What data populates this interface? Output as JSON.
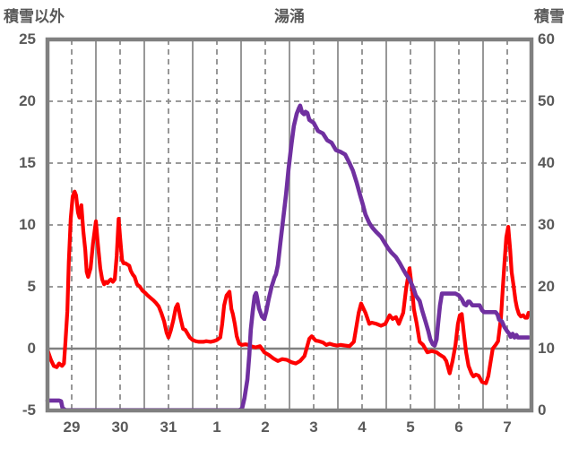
{
  "title": "湯涌",
  "left_axis": {
    "title": "積雪以外",
    "min": -5,
    "max": 25,
    "tick_step": 5,
    "ticks": [
      "25",
      "20",
      "15",
      "10",
      "5",
      "0",
      "-5"
    ]
  },
  "right_axis": {
    "title": "積雪",
    "min": 0,
    "max": 60,
    "tick_step": 10,
    "ticks": [
      "60",
      "50",
      "40",
      "30",
      "20",
      "10",
      "0"
    ]
  },
  "x_axis": {
    "tick_labels": [
      "29",
      "30",
      "31",
      "1",
      "2",
      "3",
      "4",
      "5",
      "6",
      "7"
    ],
    "note": "daily columns Dec 29 - Jan 7; solid gridlines at day boundaries, dashed gridlines at day centers; x unit below = days from left edge (label k centered at k+0.5)"
  },
  "colors": {
    "series_red": "#fe0000",
    "series_purple": "#7030a0",
    "grid": "#8c8c8c",
    "border": "#808080",
    "text": "#595959",
    "background": "#ffffff"
  },
  "chart_data": {
    "type": "line",
    "title": "湯涌",
    "x_domain": [
      0,
      10
    ],
    "left_ylim": [
      -5,
      25
    ],
    "right_ylim": [
      0,
      60
    ],
    "grid": "on",
    "legend": "none",
    "series": [
      {
        "name": "積雪以外",
        "axis": "left",
        "color": "#fe0000",
        "points": [
          [
            0.0,
            -0.1
          ],
          [
            0.07,
            -0.9
          ],
          [
            0.13,
            -1.4
          ],
          [
            0.19,
            -1.5
          ],
          [
            0.24,
            -1.2
          ],
          [
            0.3,
            -1.4
          ],
          [
            0.34,
            -1.2
          ],
          [
            0.37,
            0.5
          ],
          [
            0.41,
            3.0
          ],
          [
            0.44,
            7.0
          ],
          [
            0.48,
            10.5
          ],
          [
            0.52,
            12.3
          ],
          [
            0.56,
            12.7
          ],
          [
            0.59,
            12.4
          ],
          [
            0.63,
            11.0
          ],
          [
            0.66,
            10.6
          ],
          [
            0.7,
            11.6
          ],
          [
            0.74,
            9.5
          ],
          [
            0.78,
            8.0
          ],
          [
            0.81,
            6.2
          ],
          [
            0.84,
            5.8
          ],
          [
            0.89,
            6.5
          ],
          [
            0.94,
            8.5
          ],
          [
            1.0,
            10.3
          ],
          [
            1.04,
            8.5
          ],
          [
            1.09,
            6.5
          ],
          [
            1.13,
            5.6
          ],
          [
            1.17,
            5.2
          ],
          [
            1.21,
            5.4
          ],
          [
            1.24,
            5.3
          ],
          [
            1.28,
            5.5
          ],
          [
            1.31,
            5.6
          ],
          [
            1.35,
            5.4
          ],
          [
            1.39,
            5.6
          ],
          [
            1.43,
            7.5
          ],
          [
            1.47,
            10.5
          ],
          [
            1.5,
            9.0
          ],
          [
            1.54,
            7.2
          ],
          [
            1.57,
            6.9
          ],
          [
            1.61,
            6.9
          ],
          [
            1.65,
            6.8
          ],
          [
            1.69,
            6.7
          ],
          [
            1.72,
            6.3
          ],
          [
            1.76,
            6.0
          ],
          [
            1.8,
            5.8
          ],
          [
            1.85,
            5.2
          ],
          [
            1.91,
            5.0
          ],
          [
            1.96,
            4.7
          ],
          [
            2.02,
            4.5
          ],
          [
            2.07,
            4.3
          ],
          [
            2.13,
            4.1
          ],
          [
            2.19,
            3.9
          ],
          [
            2.24,
            3.7
          ],
          [
            2.3,
            3.4
          ],
          [
            2.35,
            2.9
          ],
          [
            2.41,
            2.2
          ],
          [
            2.46,
            1.3
          ],
          [
            2.5,
            0.9
          ],
          [
            2.55,
            1.5
          ],
          [
            2.6,
            2.3
          ],
          [
            2.65,
            3.3
          ],
          [
            2.69,
            3.6
          ],
          [
            2.74,
            2.6
          ],
          [
            2.8,
            1.6
          ],
          [
            2.85,
            1.5
          ],
          [
            2.94,
            0.9
          ],
          [
            3.0,
            0.7
          ],
          [
            3.06,
            0.6
          ],
          [
            3.13,
            0.55
          ],
          [
            3.22,
            0.55
          ],
          [
            3.28,
            0.6
          ],
          [
            3.37,
            0.55
          ],
          [
            3.43,
            0.6
          ],
          [
            3.5,
            0.7
          ],
          [
            3.57,
            0.9
          ],
          [
            3.61,
            2.0
          ],
          [
            3.65,
            3.5
          ],
          [
            3.7,
            4.3
          ],
          [
            3.76,
            4.6
          ],
          [
            3.8,
            3.2
          ],
          [
            3.83,
            2.8
          ],
          [
            3.87,
            2.0
          ],
          [
            3.91,
            1.0
          ],
          [
            3.96,
            0.4
          ],
          [
            4.02,
            0.3
          ],
          [
            4.09,
            0.35
          ],
          [
            4.15,
            0.3
          ],
          [
            4.2,
            0.2
          ],
          [
            4.3,
            0.1
          ],
          [
            4.39,
            0.2
          ],
          [
            4.48,
            -0.3
          ],
          [
            4.57,
            -0.5
          ],
          [
            4.67,
            -0.8
          ],
          [
            4.76,
            -1.0
          ],
          [
            4.85,
            -0.85
          ],
          [
            4.94,
            -0.9
          ],
          [
            5.04,
            -1.1
          ],
          [
            5.13,
            -1.2
          ],
          [
            5.22,
            -1.0
          ],
          [
            5.31,
            -0.6
          ],
          [
            5.41,
            0.8
          ],
          [
            5.46,
            1.0
          ],
          [
            5.54,
            0.65
          ],
          [
            5.61,
            0.6
          ],
          [
            5.69,
            0.5
          ],
          [
            5.76,
            0.3
          ],
          [
            5.83,
            0.4
          ],
          [
            5.91,
            0.3
          ],
          [
            5.98,
            0.25
          ],
          [
            6.06,
            0.3
          ],
          [
            6.15,
            0.25
          ],
          [
            6.24,
            0.2
          ],
          [
            6.33,
            0.55
          ],
          [
            6.43,
            2.9
          ],
          [
            6.48,
            3.65
          ],
          [
            6.57,
            2.9
          ],
          [
            6.65,
            2.0
          ],
          [
            6.7,
            2.1
          ],
          [
            6.8,
            2.0
          ],
          [
            6.89,
            1.85
          ],
          [
            6.98,
            2.0
          ],
          [
            7.07,
            2.7
          ],
          [
            7.13,
            2.4
          ],
          [
            7.2,
            2.55
          ],
          [
            7.26,
            2.0
          ],
          [
            7.35,
            2.9
          ],
          [
            7.41,
            4.85
          ],
          [
            7.48,
            6.5
          ],
          [
            7.54,
            4.6
          ],
          [
            7.57,
            3.2
          ],
          [
            7.63,
            2.0
          ],
          [
            7.69,
            0.55
          ],
          [
            7.76,
            0.3
          ],
          [
            7.85,
            -0.3
          ],
          [
            7.94,
            -0.2
          ],
          [
            8.04,
            -0.3
          ],
          [
            8.09,
            -0.45
          ],
          [
            8.19,
            -0.7
          ],
          [
            8.24,
            -1.0
          ],
          [
            8.31,
            -2.0
          ],
          [
            8.37,
            -1.0
          ],
          [
            8.43,
            0.3
          ],
          [
            8.48,
            2.0
          ],
          [
            8.52,
            2.7
          ],
          [
            8.56,
            2.8
          ],
          [
            8.61,
            1.0
          ],
          [
            8.65,
            -0.3
          ],
          [
            8.7,
            -1.4
          ],
          [
            8.76,
            -2.0
          ],
          [
            8.8,
            -2.25
          ],
          [
            8.85,
            -2.1
          ],
          [
            8.91,
            -2.2
          ],
          [
            8.98,
            -2.7
          ],
          [
            9.06,
            -2.8
          ],
          [
            9.11,
            -2.2
          ],
          [
            9.15,
            -1.2
          ],
          [
            9.2,
            0.0
          ],
          [
            9.26,
            0.3
          ],
          [
            9.31,
            0.6
          ],
          [
            9.37,
            2.5
          ],
          [
            9.41,
            5.0
          ],
          [
            9.44,
            6.8
          ],
          [
            9.48,
            9.0
          ],
          [
            9.52,
            9.85
          ],
          [
            9.56,
            8.0
          ],
          [
            9.59,
            6.2
          ],
          [
            9.63,
            5.1
          ],
          [
            9.67,
            3.9
          ],
          [
            9.7,
            3.3
          ],
          [
            9.74,
            2.8
          ],
          [
            9.78,
            2.6
          ],
          [
            9.83,
            2.7
          ],
          [
            9.87,
            2.5
          ],
          [
            9.91,
            2.5
          ],
          [
            9.94,
            2.9
          ]
        ]
      },
      {
        "name": "積雪",
        "axis": "right",
        "color": "#7030a0",
        "points": [
          [
            0.0,
            1.6
          ],
          [
            0.24,
            1.6
          ],
          [
            0.28,
            1.5
          ],
          [
            0.31,
            0.4
          ],
          [
            0.37,
            0.05
          ],
          [
            1.0,
            0.05
          ],
          [
            2.0,
            0.05
          ],
          [
            3.0,
            0.05
          ],
          [
            3.96,
            0.05
          ],
          [
            4.02,
            0.3
          ],
          [
            4.07,
            2
          ],
          [
            4.13,
            5
          ],
          [
            4.17,
            9
          ],
          [
            4.2,
            13
          ],
          [
            4.24,
            16
          ],
          [
            4.28,
            18.5
          ],
          [
            4.31,
            19
          ],
          [
            4.33,
            18.3
          ],
          [
            4.37,
            16.5
          ],
          [
            4.43,
            15.2
          ],
          [
            4.48,
            14.8
          ],
          [
            4.52,
            16
          ],
          [
            4.57,
            18
          ],
          [
            4.63,
            20
          ],
          [
            4.69,
            21.5
          ],
          [
            4.72,
            22
          ],
          [
            4.76,
            23.5
          ],
          [
            4.81,
            27
          ],
          [
            4.87,
            31
          ],
          [
            4.93,
            35
          ],
          [
            4.98,
            39
          ],
          [
            5.04,
            43
          ],
          [
            5.09,
            46
          ],
          [
            5.15,
            48
          ],
          [
            5.19,
            48.8
          ],
          [
            5.22,
            49.3
          ],
          [
            5.26,
            48.2
          ],
          [
            5.3,
            47.9
          ],
          [
            5.33,
            48.3
          ],
          [
            5.37,
            48.1
          ],
          [
            5.41,
            47.0
          ],
          [
            5.5,
            46.5
          ],
          [
            5.59,
            45.2
          ],
          [
            5.69,
            44.8
          ],
          [
            5.78,
            43.7
          ],
          [
            5.87,
            43.3
          ],
          [
            5.96,
            42.1
          ],
          [
            6.06,
            41.8
          ],
          [
            6.15,
            41.4
          ],
          [
            6.24,
            40.0
          ],
          [
            6.31,
            38.8
          ],
          [
            6.39,
            36.8
          ],
          [
            6.46,
            34.8
          ],
          [
            6.52,
            33.2
          ],
          [
            6.57,
            31.7
          ],
          [
            6.65,
            30.3
          ],
          [
            6.72,
            29.5
          ],
          [
            6.8,
            28.8
          ],
          [
            6.89,
            28.1
          ],
          [
            6.96,
            27.2
          ],
          [
            7.04,
            26.2
          ],
          [
            7.11,
            25.5
          ],
          [
            7.2,
            24.8
          ],
          [
            7.28,
            23.8
          ],
          [
            7.35,
            22.8
          ],
          [
            7.41,
            22.0
          ],
          [
            7.48,
            21.2
          ],
          [
            7.56,
            19.8
          ],
          [
            7.61,
            18.6
          ],
          [
            7.69,
            17.7
          ],
          [
            7.74,
            16.2
          ],
          [
            7.81,
            14.4
          ],
          [
            7.87,
            12.8
          ],
          [
            7.91,
            11.5
          ],
          [
            7.96,
            10.7
          ],
          [
            8.0,
            10.5
          ],
          [
            8.04,
            11.5
          ],
          [
            8.07,
            14.0
          ],
          [
            8.11,
            17.0
          ],
          [
            8.15,
            18.9
          ],
          [
            8.28,
            18.9
          ],
          [
            8.43,
            18.9
          ],
          [
            8.5,
            18.6
          ],
          [
            8.56,
            18.0
          ],
          [
            8.61,
            17.2
          ],
          [
            8.65,
            17.0
          ],
          [
            8.69,
            17.6
          ],
          [
            8.72,
            17.6
          ],
          [
            8.78,
            17.0
          ],
          [
            8.93,
            17.0
          ],
          [
            8.98,
            16.2
          ],
          [
            9.02,
            15.9
          ],
          [
            9.2,
            15.9
          ],
          [
            9.26,
            15.9
          ],
          [
            9.3,
            15.5
          ],
          [
            9.33,
            14.7
          ],
          [
            9.39,
            14.4
          ],
          [
            9.44,
            13.5
          ],
          [
            9.5,
            12.8
          ],
          [
            9.54,
            12.4
          ],
          [
            9.57,
            11.9
          ],
          [
            9.61,
            12.4
          ],
          [
            9.65,
            11.8
          ],
          [
            9.69,
            12.2
          ],
          [
            9.72,
            11.8
          ],
          [
            9.8,
            11.8
          ],
          [
            9.87,
            11.8
          ],
          [
            9.94,
            11.8
          ]
        ]
      }
    ]
  }
}
